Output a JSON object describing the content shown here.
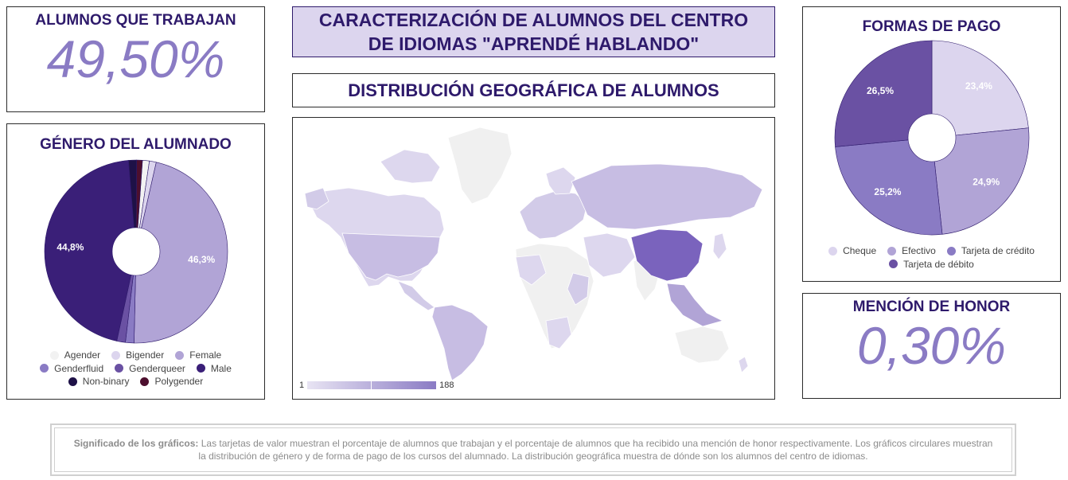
{
  "colors": {
    "title": "#2e1a6b",
    "value": "#8a7bc4",
    "header_bg": "#dcd5ee",
    "border": "#2b2b2b"
  },
  "header": {
    "title": "CARACTERIZACIÓN DE ALUMNOS DEL CENTRO DE IDIOMAS \"APRENDÉ HABLANDO\""
  },
  "work_card": {
    "title": "ALUMNOS QUE TRABAJAN",
    "value": "49,50%"
  },
  "honor_card": {
    "title": "MENCIÓN DE HONOR",
    "value": "0,30%"
  },
  "geo": {
    "title": "DISTRIBUCIÓN GEOGRÁFICA DE ALUMNOS",
    "scale_min": "1",
    "scale_max": "188"
  },
  "note": {
    "label": "Significado de los gráficos:",
    "text": "Las tarjetas de valor muestran el porcentaje de alumnos que trabajan y el porcentaje de alumnos que ha recibido una mención de honor respectivamente. Los gráficos circulares muestran la distribución de género y de forma de pago de los cursos del alumnado. La distribución geográfica muestra de dónde son los alumnos del centro de idiomas."
  },
  "chart_data": [
    {
      "type": "pie",
      "title": "GÉNERO DEL ALUMNADO",
      "categories": [
        "Agender",
        "Bigender",
        "Female",
        "Genderfluid",
        "Genderqueer",
        "Male",
        "Non-binary",
        "Polygender"
      ],
      "values": [
        1.2,
        1.2,
        46.3,
        1.5,
        1.5,
        44.8,
        1.4,
        1.0
      ],
      "data_labels": [
        "",
        "",
        "",
        "",
        "",
        "",
        "",
        ""
      ],
      "shown_labels": {
        "Female": "46,3%",
        "Male": "44,8%"
      },
      "colors": [
        "#f2f2f2",
        "#dcd5ee",
        "#b1a4d6",
        "#8a7bc4",
        "#6a51a3",
        "#3a1f78",
        "#1e1147",
        "#4d0f2e"
      ],
      "legend": "bottom"
    },
    {
      "type": "pie",
      "title": "FORMAS DE PAGO",
      "categories": [
        "Cheque",
        "Efectivo",
        "Tarjeta de crédito",
        "Tarjeta de débito"
      ],
      "values": [
        23.4,
        24.9,
        25.2,
        26.5
      ],
      "data_labels": [
        "23,4%",
        "24,9%",
        "25,2%",
        "26,5%"
      ],
      "colors": [
        "#dcd5ee",
        "#b1a4d6",
        "#8a7bc4",
        "#6a51a3"
      ],
      "legend": "bottom"
    },
    {
      "type": "heatmap",
      "title": "DISTRIBUCIÓN GEOGRÁFICA DE ALUMNOS",
      "scale": [
        1,
        188
      ]
    }
  ]
}
